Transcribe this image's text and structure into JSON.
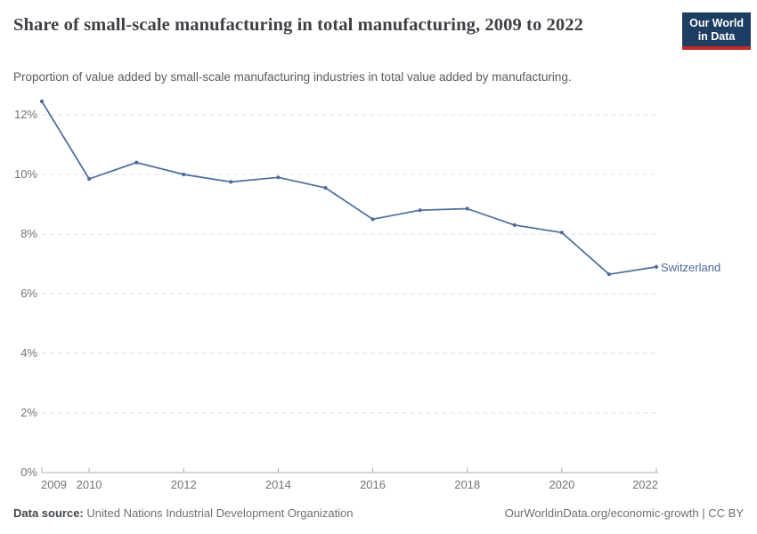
{
  "chart_data": {
    "type": "line",
    "title": "Share of small-scale manufacturing in total manufacturing, 2009 to 2022",
    "subtitle": "Proportion of value added by small-scale manufacturing industries in total value added by manufacturing.",
    "x": [
      2009,
      2010,
      2011,
      2012,
      2013,
      2014,
      2015,
      2016,
      2017,
      2018,
      2019,
      2020,
      2021,
      2022
    ],
    "series": [
      {
        "name": "Switzerland",
        "color": "#4C6A9C",
        "values": [
          12.45,
          9.85,
          10.4,
          10.0,
          9.75,
          9.9,
          9.55,
          8.5,
          8.8,
          8.85,
          8.3,
          8.05,
          6.65,
          6.9
        ]
      }
    ],
    "ylim": [
      0,
      12.6
    ],
    "xlim": [
      2009,
      2022
    ],
    "y_ticks": [
      {
        "value": 0,
        "label": "0%"
      },
      {
        "value": 2,
        "label": "2%"
      },
      {
        "value": 4,
        "label": "4%"
      },
      {
        "value": 6,
        "label": "6%"
      },
      {
        "value": 8,
        "label": "8%"
      },
      {
        "value": 10,
        "label": "10%"
      },
      {
        "value": 12,
        "label": "12%"
      }
    ],
    "x_ticks": [
      {
        "year": 2009,
        "label": "2009"
      },
      {
        "year": 2010,
        "label": "2010"
      },
      {
        "year": 2012,
        "label": "2012"
      },
      {
        "year": 2014,
        "label": "2014"
      },
      {
        "year": 2016,
        "label": "2016"
      },
      {
        "year": 2018,
        "label": "2018"
      },
      {
        "year": 2020,
        "label": "2020"
      },
      {
        "year": 2022,
        "label": "2022"
      }
    ],
    "grid": "horizontal-dashed",
    "legend_position": "line-end-label",
    "end_label": "Switzerland",
    "colors": {
      "grid": "#dcdcdc",
      "axis": "#ababab",
      "tick_text": "#737373"
    }
  },
  "logo": {
    "line1": "Our World",
    "line2": "in Data",
    "bg": "#1d3d63",
    "bar": "#c62828"
  },
  "footer": {
    "datasource_label": "Data source:",
    "datasource_value": "United Nations Industrial Development Organization",
    "credit": "OurWorldinData.org/economic-growth | CC BY"
  }
}
